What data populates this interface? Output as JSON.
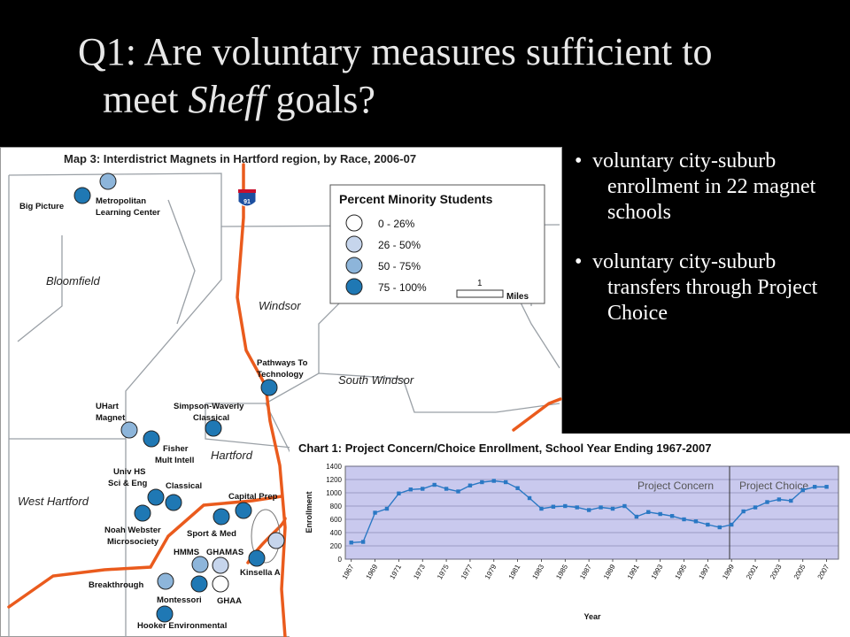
{
  "title": {
    "line1": "Q1: Are voluntary measures sufficient to",
    "line2_pre": "meet ",
    "line2_italic": "Sheff",
    "line2_post": " goals?"
  },
  "bullets": {
    "marker": "•",
    "items": [
      "voluntary city-suburb enrollment in 22 magnet schools",
      "voluntary city-suburb transfers through Project Choice"
    ]
  },
  "map": {
    "title": "Map 3: Interdistrict Magnets in Hartford region, by Race, 2006-07",
    "highway": "91",
    "legend": {
      "title": "Percent Minority Students",
      "items": [
        {
          "label": "0 - 26%",
          "color": "#ffffff"
        },
        {
          "label": "26 - 50%",
          "color": "#c6d5ec"
        },
        {
          "label": "50 - 75%",
          "color": "#8db5da"
        },
        {
          "label": "75 - 100%",
          "color": "#1f78b4"
        }
      ]
    },
    "scale": {
      "value": "1",
      "unit": "Miles"
    },
    "towns": [
      "Bloomfield",
      "Windsor",
      "South Windsor",
      "Hartford",
      "West Hartford"
    ],
    "schools": [
      {
        "name": "Big Picture",
        "category": 3
      },
      {
        "name": "Metropolitan\nLearning Center",
        "category": 2
      },
      {
        "name": "Pathways To\nTechnology",
        "category": 3
      },
      {
        "name": "UHart\nMagnet",
        "category": 2
      },
      {
        "name": "Simpson-Waverly\nClassical",
        "category": 3
      },
      {
        "name": "Fisher\nMult Intell",
        "category": 3
      },
      {
        "name": "Univ HS\nSci & Eng",
        "category": 3
      },
      {
        "name": "Classical",
        "category": 3
      },
      {
        "name": "Capital Prep",
        "category": 3
      },
      {
        "name": "Noah Webster\nMicrosociety",
        "category": 3
      },
      {
        "name": "Sport & Med",
        "category": 3
      },
      {
        "name": "HMMS",
        "category": 2
      },
      {
        "name": "GHAMAS",
        "category": 1
      },
      {
        "name": "Kinsella A",
        "category": 3
      },
      {
        "name": "Breakthrough",
        "category": 2
      },
      {
        "name": "Montessori",
        "category": 3
      },
      {
        "name": "GHAA",
        "category": 0
      },
      {
        "name": "Hooker Environmental",
        "category": 3
      },
      {
        "name": "",
        "category": 1
      }
    ]
  },
  "chart_data": {
    "type": "line",
    "title": "Chart 1: Project Concern/Choice Enrollment, School Year Ending 1967-2007",
    "xlabel": "Year",
    "ylabel": "Enrollment",
    "ylim": [
      0,
      1400
    ],
    "yticks": [
      0,
      200,
      400,
      600,
      800,
      1000,
      1200,
      1400
    ],
    "xticks": [
      "1967",
      "1969",
      "1971",
      "1973",
      "1975",
      "1977",
      "1979",
      "1981",
      "1983",
      "1985",
      "1987",
      "1989",
      "1991",
      "1993",
      "1995",
      "1997",
      "1999",
      "2001",
      "2003",
      "2005",
      "2007"
    ],
    "annotations": [
      "Project Concern",
      "Project Choice"
    ],
    "grid": true,
    "series": [
      {
        "x": [
          1967,
          1968,
          1969,
          1970,
          1971,
          1972,
          1973,
          1974,
          1975,
          1976,
          1977,
          1978,
          1979,
          1980,
          1981,
          1982,
          1983,
          1984,
          1985,
          1986,
          1987,
          1988,
          1989,
          1990,
          1991,
          1992,
          1993,
          1994,
          1995,
          1996,
          1997,
          1998,
          1999,
          2000,
          2001,
          2002,
          2003,
          2004,
          2005,
          2006,
          2007
        ],
        "y": [
          250,
          260,
          700,
          760,
          990,
          1050,
          1060,
          1120,
          1060,
          1020,
          1110,
          1160,
          1180,
          1160,
          1070,
          920,
          760,
          790,
          800,
          780,
          740,
          780,
          760,
          800,
          640,
          710,
          680,
          650,
          600,
          570,
          520,
          480,
          520,
          720,
          780,
          860,
          900,
          880,
          1040,
          1090,
          1090
        ]
      }
    ]
  }
}
